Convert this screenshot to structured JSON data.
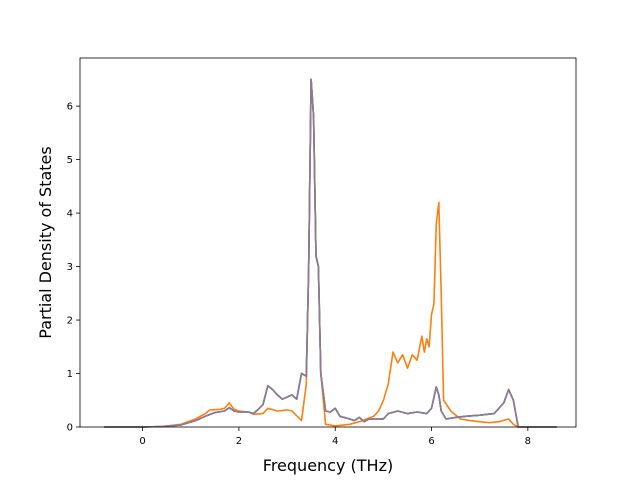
{
  "chart_data": {
    "type": "line",
    "title": "",
    "xlabel": "Frequency (THz)",
    "ylabel": "Partial Density of States",
    "xlim": [
      -1.3,
      9.0
    ],
    "ylim": [
      0,
      6.9
    ],
    "xticks": [
      0,
      2,
      4,
      6,
      8
    ],
    "yticks": [
      0,
      1,
      2,
      3,
      4,
      5,
      6
    ],
    "grid": false,
    "legend": "none",
    "series": [
      {
        "color": "#1f77b4",
        "points": [
          [
            -0.8,
            0
          ],
          [
            0.0,
            0
          ],
          [
            0.4,
            0.01
          ],
          [
            0.8,
            0.04
          ],
          [
            1.1,
            0.12
          ],
          [
            1.3,
            0.2
          ],
          [
            1.5,
            0.27
          ],
          [
            1.7,
            0.3
          ],
          [
            1.8,
            0.36
          ],
          [
            1.9,
            0.3
          ],
          [
            2.0,
            0.28
          ],
          [
            2.2,
            0.28
          ],
          [
            2.3,
            0.25
          ],
          [
            2.4,
            0.33
          ],
          [
            2.5,
            0.42
          ],
          [
            2.6,
            0.77
          ],
          [
            2.7,
            0.7
          ],
          [
            2.8,
            0.6
          ],
          [
            2.9,
            0.52
          ],
          [
            3.1,
            0.6
          ],
          [
            3.2,
            0.52
          ],
          [
            3.3,
            1.0
          ],
          [
            3.4,
            0.95
          ],
          [
            3.45,
            3.0
          ],
          [
            3.5,
            6.5
          ],
          [
            3.55,
            5.8
          ],
          [
            3.6,
            3.2
          ],
          [
            3.65,
            3.0
          ],
          [
            3.7,
            1.0
          ],
          [
            3.8,
            0.3
          ],
          [
            3.9,
            0.28
          ],
          [
            4.0,
            0.35
          ],
          [
            4.1,
            0.2
          ],
          [
            4.3,
            0.15
          ],
          [
            4.4,
            0.12
          ],
          [
            4.5,
            0.18
          ],
          [
            4.6,
            0.1
          ],
          [
            4.7,
            0.15
          ],
          [
            5.0,
            0.15
          ],
          [
            5.1,
            0.25
          ],
          [
            5.3,
            0.3
          ],
          [
            5.5,
            0.25
          ],
          [
            5.7,
            0.28
          ],
          [
            5.9,
            0.25
          ],
          [
            6.0,
            0.35
          ],
          [
            6.1,
            0.75
          ],
          [
            6.15,
            0.6
          ],
          [
            6.2,
            0.3
          ],
          [
            6.3,
            0.15
          ],
          [
            6.5,
            0.18
          ],
          [
            6.7,
            0.2
          ],
          [
            7.0,
            0.22
          ],
          [
            7.3,
            0.25
          ],
          [
            7.5,
            0.45
          ],
          [
            7.6,
            0.7
          ],
          [
            7.7,
            0.5
          ],
          [
            7.8,
            0.0
          ],
          [
            8.6,
            0.0
          ]
        ]
      },
      {
        "color": "#ff7f0e",
        "points": [
          [
            -0.8,
            0
          ],
          [
            0.0,
            0
          ],
          [
            0.4,
            0.01
          ],
          [
            0.8,
            0.05
          ],
          [
            1.1,
            0.15
          ],
          [
            1.3,
            0.25
          ],
          [
            1.4,
            0.32
          ],
          [
            1.6,
            0.33
          ],
          [
            1.7,
            0.35
          ],
          [
            1.8,
            0.45
          ],
          [
            1.9,
            0.33
          ],
          [
            2.0,
            0.3
          ],
          [
            2.2,
            0.28
          ],
          [
            2.3,
            0.24
          ],
          [
            2.5,
            0.25
          ],
          [
            2.6,
            0.35
          ],
          [
            2.8,
            0.3
          ],
          [
            3.0,
            0.32
          ],
          [
            3.1,
            0.3
          ],
          [
            3.3,
            0.12
          ],
          [
            3.4,
            0.8
          ],
          [
            3.45,
            3.0
          ],
          [
            3.5,
            6.5
          ],
          [
            3.55,
            5.8
          ],
          [
            3.6,
            3.2
          ],
          [
            3.65,
            3.0
          ],
          [
            3.7,
            1.0
          ],
          [
            3.8,
            0.05
          ],
          [
            4.0,
            0.02
          ],
          [
            4.3,
            0.05
          ],
          [
            4.5,
            0.1
          ],
          [
            4.8,
            0.2
          ],
          [
            4.9,
            0.3
          ],
          [
            5.0,
            0.5
          ],
          [
            5.1,
            0.8
          ],
          [
            5.2,
            1.4
          ],
          [
            5.3,
            1.2
          ],
          [
            5.4,
            1.35
          ],
          [
            5.5,
            1.1
          ],
          [
            5.6,
            1.35
          ],
          [
            5.7,
            1.25
          ],
          [
            5.8,
            1.7
          ],
          [
            5.85,
            1.4
          ],
          [
            5.9,
            1.65
          ],
          [
            5.95,
            1.5
          ],
          [
            6.0,
            2.1
          ],
          [
            6.05,
            2.3
          ],
          [
            6.1,
            3.8
          ],
          [
            6.15,
            4.2
          ],
          [
            6.2,
            2.5
          ],
          [
            6.25,
            0.5
          ],
          [
            6.4,
            0.3
          ],
          [
            6.6,
            0.15
          ],
          [
            6.8,
            0.12
          ],
          [
            7.0,
            0.1
          ],
          [
            7.2,
            0.08
          ],
          [
            7.4,
            0.1
          ],
          [
            7.6,
            0.15
          ],
          [
            7.7,
            0.05
          ],
          [
            7.8,
            0.0
          ],
          [
            8.6,
            0.0
          ]
        ]
      },
      {
        "color": "#7f7f7f",
        "points": [
          [
            -0.8,
            0
          ],
          [
            0.0,
            0
          ],
          [
            0.4,
            0.01
          ],
          [
            0.8,
            0.04
          ],
          [
            1.1,
            0.12
          ],
          [
            1.3,
            0.2
          ],
          [
            1.5,
            0.27
          ],
          [
            1.7,
            0.3
          ],
          [
            1.8,
            0.36
          ],
          [
            1.9,
            0.3
          ],
          [
            2.0,
            0.28
          ],
          [
            2.2,
            0.28
          ],
          [
            2.3,
            0.25
          ],
          [
            2.4,
            0.33
          ],
          [
            2.5,
            0.42
          ],
          [
            2.6,
            0.77
          ],
          [
            2.7,
            0.7
          ],
          [
            2.8,
            0.6
          ],
          [
            2.9,
            0.52
          ],
          [
            3.1,
            0.6
          ],
          [
            3.2,
            0.52
          ],
          [
            3.3,
            1.0
          ],
          [
            3.4,
            0.95
          ],
          [
            3.45,
            3.0
          ],
          [
            3.5,
            6.5
          ],
          [
            3.55,
            5.8
          ],
          [
            3.6,
            3.2
          ],
          [
            3.65,
            3.0
          ],
          [
            3.7,
            1.0
          ],
          [
            3.8,
            0.3
          ],
          [
            3.9,
            0.28
          ],
          [
            4.0,
            0.35
          ],
          [
            4.1,
            0.2
          ],
          [
            4.3,
            0.15
          ],
          [
            4.4,
            0.12
          ],
          [
            4.5,
            0.18
          ],
          [
            4.6,
            0.1
          ],
          [
            4.7,
            0.15
          ],
          [
            5.0,
            0.15
          ],
          [
            5.1,
            0.25
          ],
          [
            5.3,
            0.3
          ],
          [
            5.5,
            0.25
          ],
          [
            5.7,
            0.28
          ],
          [
            5.9,
            0.25
          ],
          [
            6.0,
            0.35
          ],
          [
            6.1,
            0.75
          ],
          [
            6.15,
            0.6
          ],
          [
            6.2,
            0.3
          ],
          [
            6.3,
            0.15
          ],
          [
            6.5,
            0.18
          ],
          [
            6.7,
            0.2
          ],
          [
            7.0,
            0.22
          ],
          [
            7.3,
            0.25
          ],
          [
            7.5,
            0.45
          ],
          [
            7.6,
            0.7
          ],
          [
            7.7,
            0.5
          ],
          [
            7.8,
            0.0
          ],
          [
            8.6,
            0.0
          ]
        ]
      },
      {
        "color": "#8c7b92",
        "points": [
          [
            -0.8,
            0
          ],
          [
            0.0,
            0
          ],
          [
            0.4,
            0.01
          ],
          [
            0.8,
            0.04
          ],
          [
            1.1,
            0.12
          ],
          [
            1.3,
            0.2
          ],
          [
            1.5,
            0.27
          ],
          [
            1.7,
            0.3
          ],
          [
            1.8,
            0.36
          ],
          [
            1.9,
            0.3
          ],
          [
            2.0,
            0.28
          ],
          [
            2.2,
            0.28
          ],
          [
            2.3,
            0.25
          ],
          [
            2.4,
            0.33
          ],
          [
            2.5,
            0.42
          ],
          [
            2.6,
            0.77
          ],
          [
            2.7,
            0.7
          ],
          [
            2.8,
            0.6
          ],
          [
            2.9,
            0.52
          ],
          [
            3.1,
            0.6
          ],
          [
            3.2,
            0.52
          ],
          [
            3.3,
            1.0
          ],
          [
            3.4,
            0.95
          ],
          [
            3.45,
            3.0
          ],
          [
            3.5,
            6.5
          ],
          [
            3.55,
            5.8
          ],
          [
            3.6,
            3.2
          ],
          [
            3.65,
            3.0
          ],
          [
            3.7,
            1.0
          ],
          [
            3.8,
            0.3
          ],
          [
            3.9,
            0.28
          ],
          [
            4.0,
            0.35
          ],
          [
            4.1,
            0.2
          ],
          [
            4.3,
            0.15
          ],
          [
            4.4,
            0.12
          ],
          [
            4.5,
            0.18
          ],
          [
            4.6,
            0.1
          ],
          [
            4.7,
            0.15
          ],
          [
            5.0,
            0.15
          ],
          [
            5.1,
            0.25
          ],
          [
            5.3,
            0.3
          ],
          [
            5.5,
            0.25
          ],
          [
            5.7,
            0.28
          ],
          [
            5.9,
            0.25
          ],
          [
            6.0,
            0.35
          ],
          [
            6.1,
            0.75
          ],
          [
            6.15,
            0.6
          ],
          [
            6.2,
            0.3
          ],
          [
            6.3,
            0.15
          ],
          [
            6.5,
            0.18
          ],
          [
            6.7,
            0.2
          ],
          [
            7.0,
            0.22
          ],
          [
            7.3,
            0.25
          ],
          [
            7.5,
            0.45
          ],
          [
            7.6,
            0.7
          ],
          [
            7.7,
            0.5
          ],
          [
            7.8,
            0.0
          ],
          [
            8.6,
            0.0
          ]
        ]
      }
    ]
  }
}
